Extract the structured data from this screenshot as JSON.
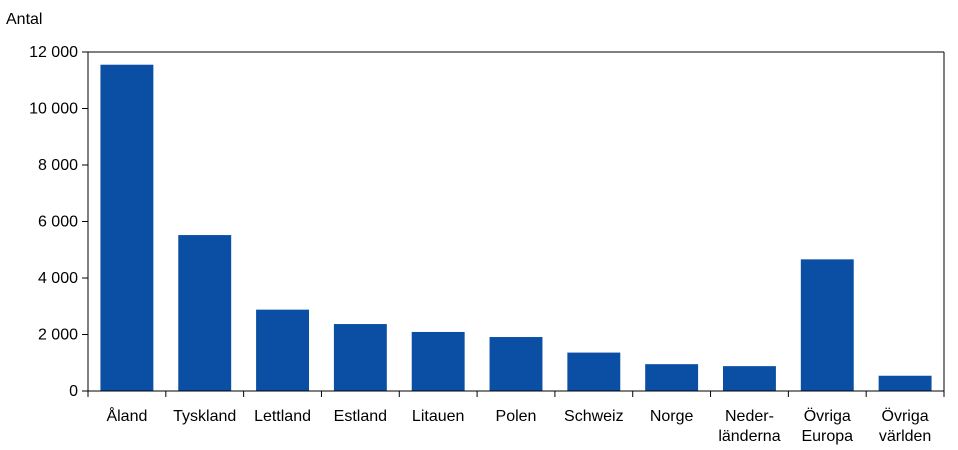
{
  "chart_data": {
    "type": "bar",
    "title": "",
    "xlabel": "",
    "ylabel": "Antal",
    "ylim": [
      0,
      12000
    ],
    "yticks": [
      0,
      2000,
      4000,
      6000,
      8000,
      10000,
      12000
    ],
    "ytick_labels": [
      "0",
      "2 000",
      "4 000",
      "6 000",
      "8 000",
      "10 000",
      "12 000"
    ],
    "grid": false,
    "bar_color": "#0a4fa3",
    "categories": [
      [
        "Åland"
      ],
      [
        "Tyskland"
      ],
      [
        "Lettland"
      ],
      [
        "Estland"
      ],
      [
        "Litauen"
      ],
      [
        "Polen"
      ],
      [
        "Schweiz"
      ],
      [
        "Norge"
      ],
      [
        "Neder-",
        "länderna"
      ],
      [
        "Övriga",
        "Europa"
      ],
      [
        "Övriga",
        "världen"
      ]
    ],
    "values": [
      11550,
      5520,
      2880,
      2370,
      2090,
      1910,
      1360,
      950,
      880,
      4660,
      540
    ]
  }
}
